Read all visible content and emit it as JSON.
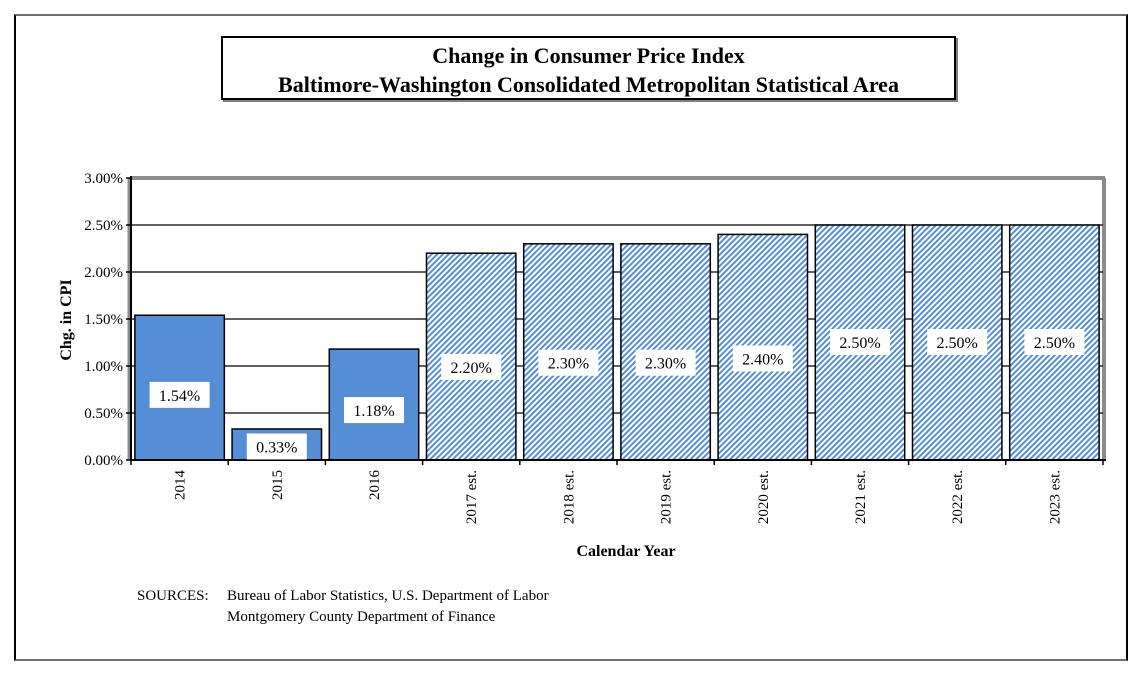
{
  "chart_data": {
    "type": "bar",
    "title": "Change in Consumer Price Index",
    "subtitle": "Baltimore-Washington  Consolidated  Metropolitan  Statistical  Area",
    "xlabel": "Calendar Year",
    "ylabel": "Chg. in CPI",
    "ylim": [
      0,
      3.0
    ],
    "yticks": [
      0.0,
      0.5,
      1.0,
      1.5,
      2.0,
      2.5,
      3.0
    ],
    "ytick_labels": [
      "0.00%",
      "0.50%",
      "1.00%",
      "1.50%",
      "2.00%",
      "2.50%",
      "3.00%"
    ],
    "grid": true,
    "categories": [
      "2014",
      "2015",
      "2016",
      "2017 est.",
      "2018 est.",
      "2019 est.",
      "2020 est.",
      "2021 est.",
      "2022 est.",
      "2023 est."
    ],
    "values": [
      1.54,
      0.33,
      1.18,
      2.2,
      2.3,
      2.3,
      2.4,
      2.5,
      2.5,
      2.5
    ],
    "data_labels": [
      "1.54%",
      "0.33%",
      "1.18%",
      "2.20%",
      "2.30%",
      "2.30%",
      "2.40%",
      "2.50%",
      "2.50%",
      "2.50%"
    ],
    "bar_style": [
      "actual",
      "actual",
      "actual",
      "estimate",
      "estimate",
      "estimate",
      "estimate",
      "estimate",
      "estimate",
      "estimate"
    ],
    "colors": {
      "actual": "#558ed5",
      "estimate_hatch": "#558ed5",
      "estimate_bg": "#ffffff"
    }
  },
  "sources": {
    "label": "SOURCES:",
    "lines": [
      "Bureau of Labor Statistics, U.S. Department of Labor",
      "Montgomery County Department of Finance"
    ]
  }
}
